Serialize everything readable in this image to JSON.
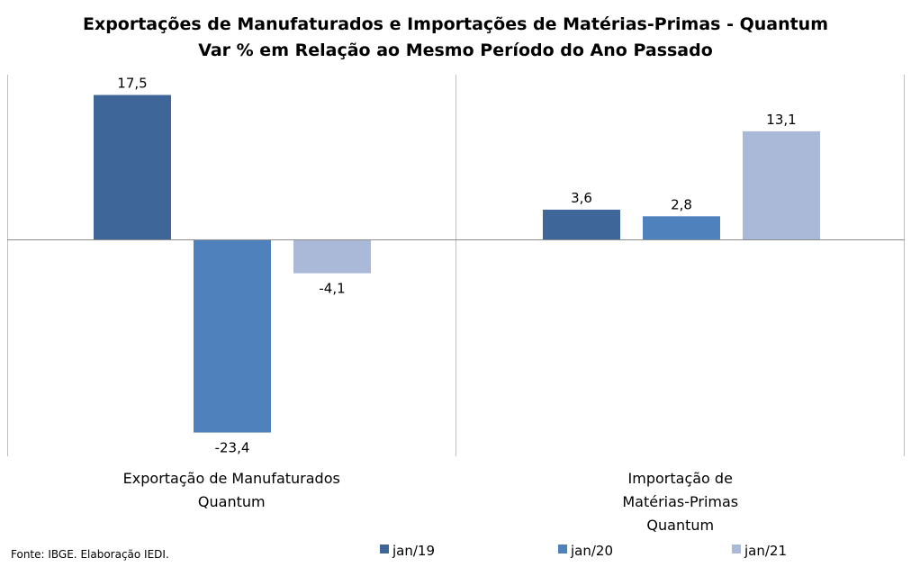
{
  "chart_data": {
    "type": "bar",
    "title": [
      "Exportações de Manufaturados e Importações de Matérias-Primas - Quantum",
      "Var % em Relação ao Mesmo Período do Ano Passado"
    ],
    "categories": [
      [
        "Exportação de Manufaturados",
        "Quantum"
      ],
      [
        "Importação de",
        "Matérias-Primas",
        "Quantum"
      ]
    ],
    "series": [
      {
        "name": "jan/19",
        "color": "#3E6699",
        "values": [
          17.5,
          3.6
        ],
        "labels": [
          "17,5",
          "3,6"
        ]
      },
      {
        "name": "jan/20",
        "color": "#4F81BD",
        "values": [
          -23.4,
          2.8
        ],
        "labels": [
          "-23,4",
          "2,8"
        ]
      },
      {
        "name": "jan/21",
        "color": "#AAB9D7",
        "values": [
          -4.1,
          13.1
        ],
        "labels": [
          "-4,1",
          "13,1"
        ]
      }
    ],
    "ylim": [
      -26.5,
      20
    ],
    "legend_position": "bottom",
    "grid": false
  },
  "source": "Fonte: IBGE. Elaboração IEDI."
}
